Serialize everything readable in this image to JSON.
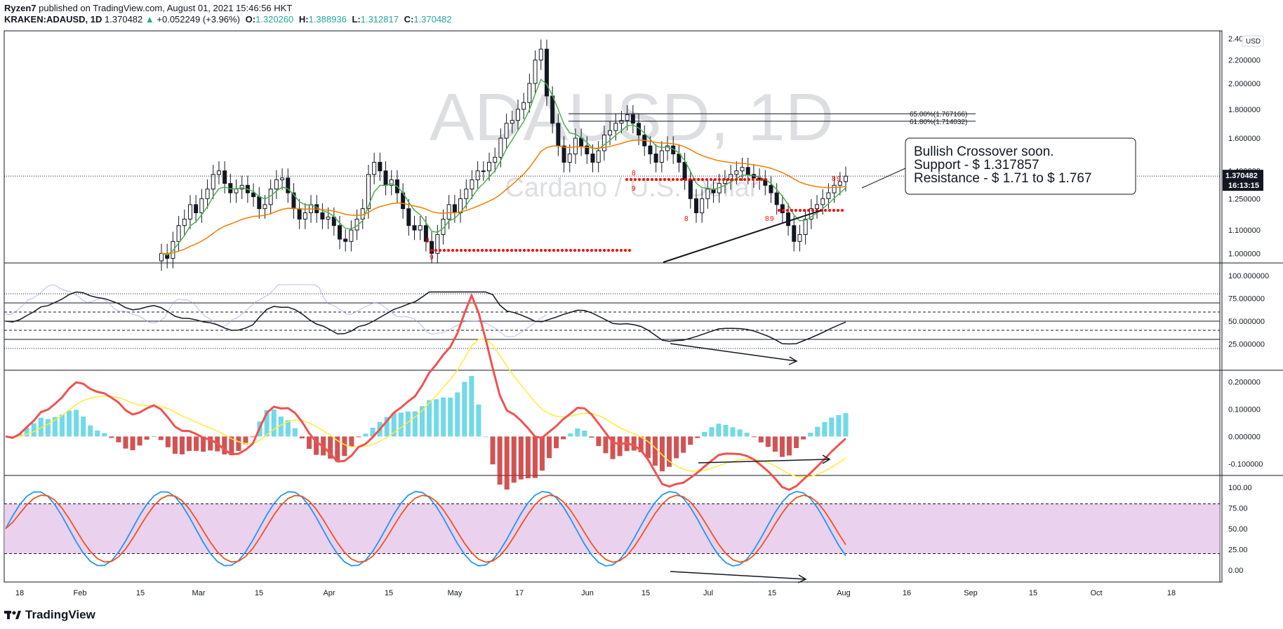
{
  "header": {
    "author": "Ryzen7",
    "published_text": "published on TradingView.com, August 01, 2021 15:46:56 HKT",
    "symbol": "KRAKEN:ADAUSD, 1D",
    "last": "1.370482",
    "change": "+0.052249 (+3.96%)",
    "o_label": "O:",
    "o": "1.320260",
    "h_label": "H:",
    "h": "1.388936",
    "l_label": "L:",
    "l": "1.312817",
    "c_label": "C:",
    "c": "1.370482"
  },
  "footer": {
    "brand": "TradingView"
  },
  "colors": {
    "bull": "#26a69a",
    "bear": "#ef5350",
    "ema_fast": "#4caf50",
    "ema_slow": "#f57c00",
    "rsi_line": "#131722",
    "rsi_shadow": "#9c9cf0",
    "macd_signal": "#ffeb3b",
    "stoch_k": "#2196f3",
    "stoch_d": "#f4511e",
    "stoch_band": "#e1bee7",
    "td_dots": "#ff0000"
  },
  "chart_data": [
    {
      "type": "candlestick",
      "title": "ADAUSD, 1D",
      "watermark_main": "ADAUSD, 1D",
      "watermark_sub": "Cardano / U.S. Dollar",
      "currency": "USD",
      "price_labels": [
        "2.400000",
        "2.200000",
        "2.000000",
        "1.800000",
        "1.600000",
        "1.400000",
        "1.250000",
        "1.100000",
        "1.000000"
      ],
      "last_price_label": "1.370482",
      "countdown": "16:13:15",
      "fib_levels": [
        {
          "label": "65.00%(1.767166)",
          "price": 1.767166
        },
        {
          "label": "61.80%(1.714032)",
          "price": 1.714032
        }
      ],
      "annotation": {
        "lines": [
          "Bullish Crossover soon.",
          "Support - $ 1.317857",
          "Resistance - $ 1.71 to $ 1.767"
        ]
      },
      "td_labels": [
        "8",
        "9",
        "8",
        "9",
        "8",
        "8",
        "9",
        "8",
        "9"
      ],
      "ylim": [
        0.97,
        2.45
      ],
      "log_scale": true,
      "series_close_approx": [
        1.0,
        0.98,
        1.05,
        1.12,
        1.15,
        1.22,
        1.18,
        1.25,
        1.3,
        1.38,
        1.4,
        1.33,
        1.28,
        1.3,
        1.32,
        1.28,
        1.26,
        1.2,
        1.22,
        1.3,
        1.35,
        1.36,
        1.28,
        1.2,
        1.15,
        1.18,
        1.22,
        1.18,
        1.15,
        1.16,
        1.12,
        1.06,
        1.05,
        1.1,
        1.15,
        1.2,
        1.38,
        1.45,
        1.4,
        1.32,
        1.35,
        1.28,
        1.2,
        1.12,
        1.1,
        1.12,
        1.05,
        1.0,
        1.08,
        1.15,
        1.22,
        1.18,
        1.25,
        1.3,
        1.35,
        1.4,
        1.4,
        1.45,
        1.48,
        1.6,
        1.7,
        1.72,
        1.8,
        1.85,
        2.0,
        2.2,
        2.3,
        1.9,
        1.7,
        1.55,
        1.45,
        1.5,
        1.6,
        1.55,
        1.5,
        1.45,
        1.52,
        1.62,
        1.65,
        1.7,
        1.72,
        1.76,
        1.7,
        1.62,
        1.55,
        1.5,
        1.45,
        1.52,
        1.55,
        1.5,
        1.45,
        1.35,
        1.25,
        1.18,
        1.25,
        1.3,
        1.28,
        1.33,
        1.35,
        1.38,
        1.4,
        1.42,
        1.38,
        1.36,
        1.35,
        1.32,
        1.28,
        1.22,
        1.18,
        1.12,
        1.05,
        1.08,
        1.15,
        1.2,
        1.22,
        1.25,
        1.28,
        1.32,
        1.34,
        1.37
      ]
    },
    {
      "type": "line",
      "title": "RSI",
      "price_labels": [
        "100.000000",
        "75.000000",
        "50.000000",
        "25.000000"
      ],
      "ylim": [
        0,
        110
      ],
      "levels": [
        80,
        70,
        60,
        50,
        40,
        30,
        20
      ]
    },
    {
      "type": "bar",
      "title": "MACD",
      "price_labels": [
        "0.200000",
        "0.100000",
        "0.000000",
        "-0.100000"
      ],
      "ylim": [
        -0.13,
        0.23
      ]
    },
    {
      "type": "line",
      "title": "Stochastic RSI",
      "price_labels": [
        "100.00",
        "75.00",
        "50.00",
        "25.00",
        "0.00"
      ],
      "ylim": [
        -10,
        110
      ],
      "band": [
        20,
        80
      ]
    }
  ],
  "time_axis": {
    "labels": [
      "18",
      "Feb",
      "15",
      "Mar",
      "15",
      "Apr",
      "15",
      "May",
      "17",
      "Jun",
      "15",
      "Jul",
      "15",
      "Aug",
      "16",
      "Sep",
      "15",
      "Oct",
      "18"
    ]
  }
}
